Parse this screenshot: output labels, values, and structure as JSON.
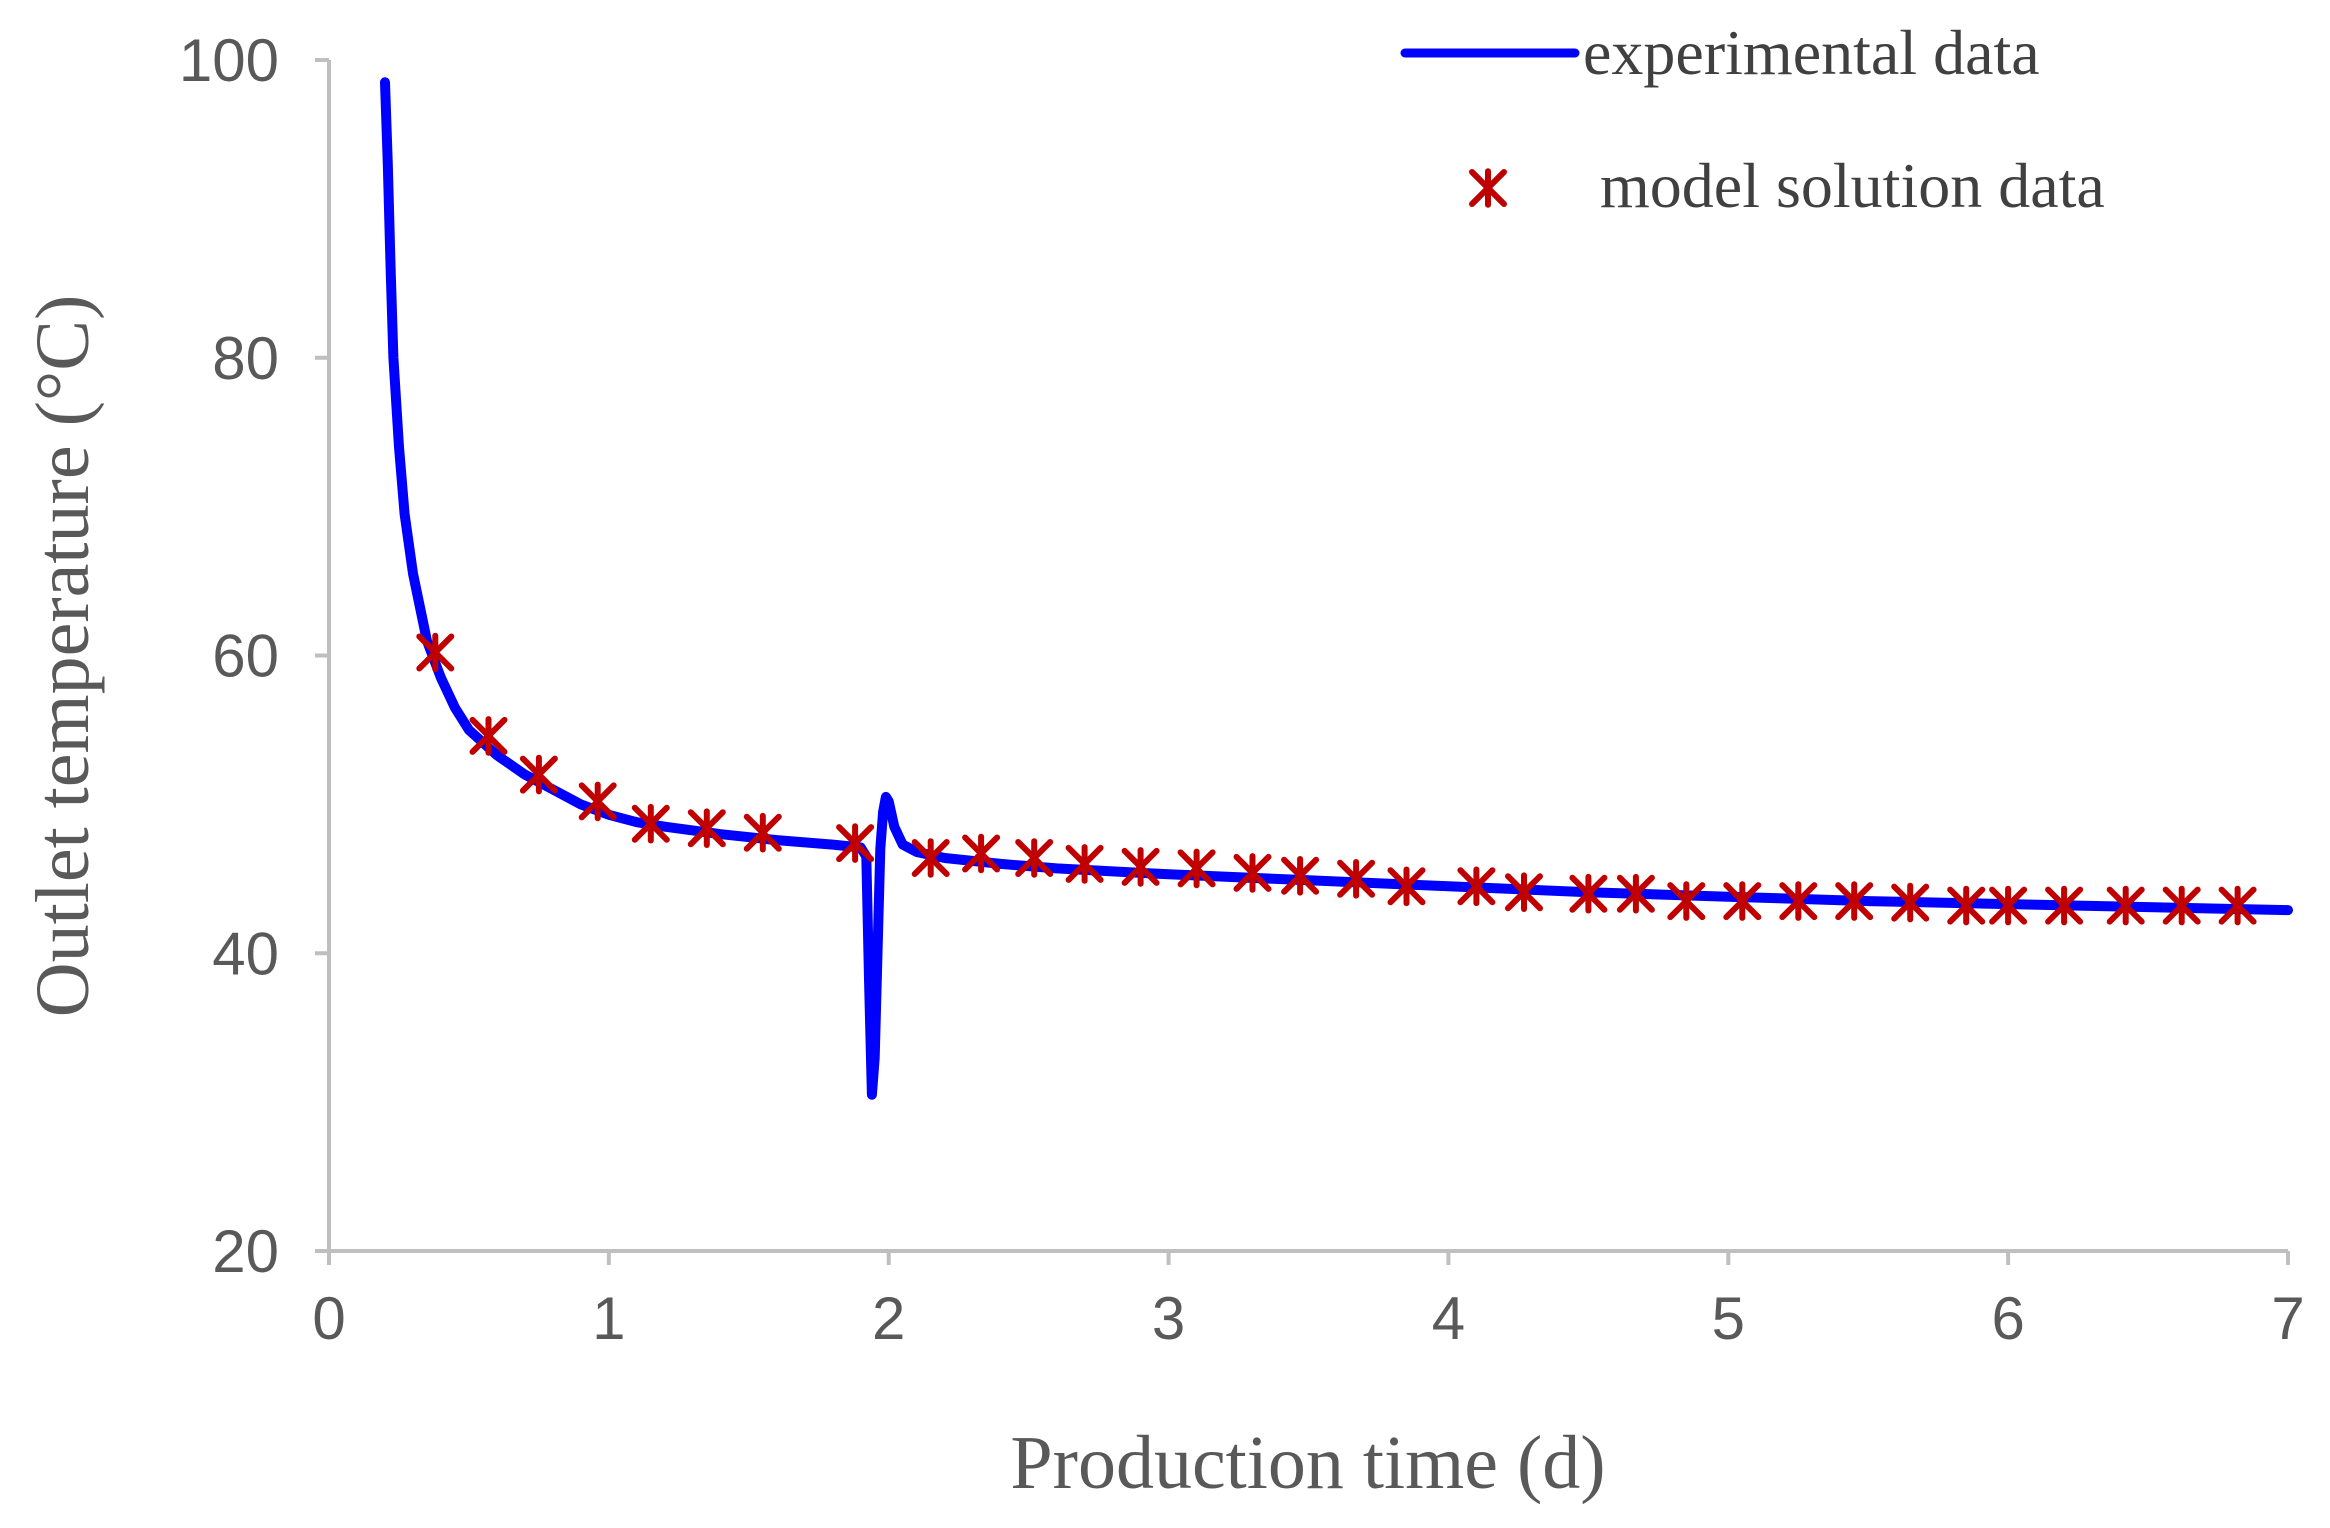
{
  "chart_data": {
    "type": "line",
    "xlabel": "Production time (d)",
    "ylabel": "Outlet temperature (°C)",
    "xlim": [
      0,
      7
    ],
    "ylim": [
      20,
      100
    ],
    "x_ticks": [
      "0",
      "1",
      "2",
      "3",
      "4",
      "5",
      "6",
      "7"
    ],
    "y_ticks": [
      "20",
      "40",
      "60",
      "80",
      "100"
    ],
    "grid": false,
    "legend_position": "top-right",
    "series": [
      {
        "name": "experimental data",
        "style": "line",
        "color": "#0000ff",
        "points": [
          [
            0.2,
            98.5
          ],
          [
            0.21,
            93
          ],
          [
            0.22,
            86
          ],
          [
            0.23,
            80
          ],
          [
            0.25,
            74
          ],
          [
            0.27,
            69.5
          ],
          [
            0.3,
            65.5
          ],
          [
            0.35,
            61
          ],
          [
            0.4,
            58.5
          ],
          [
            0.45,
            56.5
          ],
          [
            0.5,
            55
          ],
          [
            0.6,
            53.3
          ],
          [
            0.7,
            52
          ],
          [
            0.8,
            51
          ],
          [
            0.9,
            50
          ],
          [
            1.0,
            49.3
          ],
          [
            1.1,
            48.8
          ],
          [
            1.2,
            48.5
          ],
          [
            1.4,
            48
          ],
          [
            1.6,
            47.6
          ],
          [
            1.8,
            47.3
          ],
          [
            1.9,
            47.1
          ],
          [
            1.92,
            46.5
          ],
          [
            1.93,
            38
          ],
          [
            1.94,
            30.5
          ],
          [
            1.95,
            33
          ],
          [
            1.96,
            40
          ],
          [
            1.97,
            47
          ],
          [
            1.98,
            49.5
          ],
          [
            1.99,
            50.5
          ],
          [
            2.0,
            50.2
          ],
          [
            2.02,
            48.5
          ],
          [
            2.05,
            47.3
          ],
          [
            2.1,
            46.8
          ],
          [
            2.2,
            46.4
          ],
          [
            2.4,
            46
          ],
          [
            2.6,
            45.7
          ],
          [
            2.8,
            45.5
          ],
          [
            3.0,
            45.3
          ],
          [
            3.5,
            44.9
          ],
          [
            4.0,
            44.5
          ],
          [
            4.5,
            44.1
          ],
          [
            5.0,
            43.8
          ],
          [
            5.5,
            43.5
          ],
          [
            6.0,
            43.3
          ],
          [
            6.5,
            43.1
          ],
          [
            7.0,
            42.9
          ]
        ]
      },
      {
        "name": "model solution data",
        "style": "marker",
        "color": "#c00000",
        "points": [
          [
            0.38,
            60.2
          ],
          [
            0.57,
            54.6
          ],
          [
            0.75,
            52
          ],
          [
            0.96,
            50.2
          ],
          [
            1.15,
            48.7
          ],
          [
            1.35,
            48.4
          ],
          [
            1.55,
            48.1
          ],
          [
            1.88,
            47.4
          ],
          [
            2.15,
            46.4
          ],
          [
            2.33,
            46.7
          ],
          [
            2.52,
            46.4
          ],
          [
            2.7,
            46
          ],
          [
            2.9,
            45.8
          ],
          [
            3.1,
            45.7
          ],
          [
            3.3,
            45.4
          ],
          [
            3.47,
            45.2
          ],
          [
            3.67,
            45
          ],
          [
            3.85,
            44.5
          ],
          [
            4.1,
            44.5
          ],
          [
            4.27,
            44.1
          ],
          [
            4.5,
            44
          ],
          [
            4.67,
            44
          ],
          [
            4.85,
            43.5
          ],
          [
            5.05,
            43.5
          ],
          [
            5.25,
            43.5
          ],
          [
            5.45,
            43.5
          ],
          [
            5.65,
            43.4
          ],
          [
            5.85,
            43.2
          ],
          [
            6.0,
            43.2
          ],
          [
            6.2,
            43.2
          ],
          [
            6.42,
            43.2
          ],
          [
            6.62,
            43.2
          ],
          [
            6.82,
            43.2
          ]
        ]
      }
    ]
  }
}
